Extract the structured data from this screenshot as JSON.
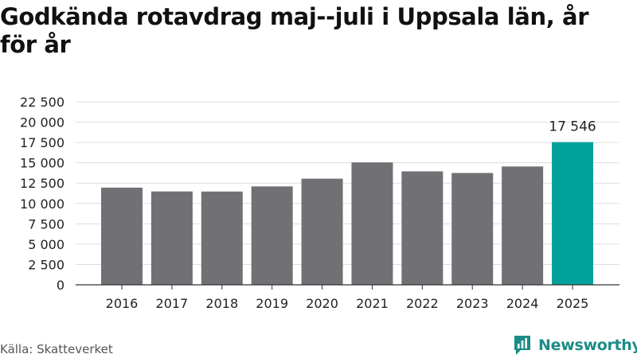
{
  "title": "Godkända rotavdrag maj--juli i Uppsala län, år för år",
  "source": "Källa: Skatteverket",
  "brand": {
    "name": "Newsworthy",
    "icon": "newsworthy-logo-icon"
  },
  "colors": {
    "bar": "#717074",
    "highlight": "#00a19b",
    "grid": "#dddddd",
    "axis": "#333333"
  },
  "chart_data": {
    "type": "bar",
    "categories": [
      "2016",
      "2017",
      "2018",
      "2019",
      "2020",
      "2021",
      "2022",
      "2023",
      "2024",
      "2025"
    ],
    "values": [
      11950,
      11480,
      11470,
      12100,
      13050,
      15050,
      13950,
      13750,
      14550,
      17546
    ],
    "data_labels": [
      {
        "index": 9,
        "text": "17 546"
      }
    ],
    "highlight_index": 9,
    "ylim": [
      0,
      22500
    ],
    "yticks": [
      0,
      2500,
      5000,
      7500,
      10000,
      12500,
      15000,
      17500,
      20000,
      22500
    ],
    "ytick_labels": [
      "0",
      "2 500",
      "5 000",
      "7 500",
      "10 000",
      "12 500",
      "15 000",
      "17 500",
      "20 000",
      "22 500"
    ],
    "xlabel": "",
    "ylabel": "",
    "grid": true,
    "legend": "none"
  }
}
